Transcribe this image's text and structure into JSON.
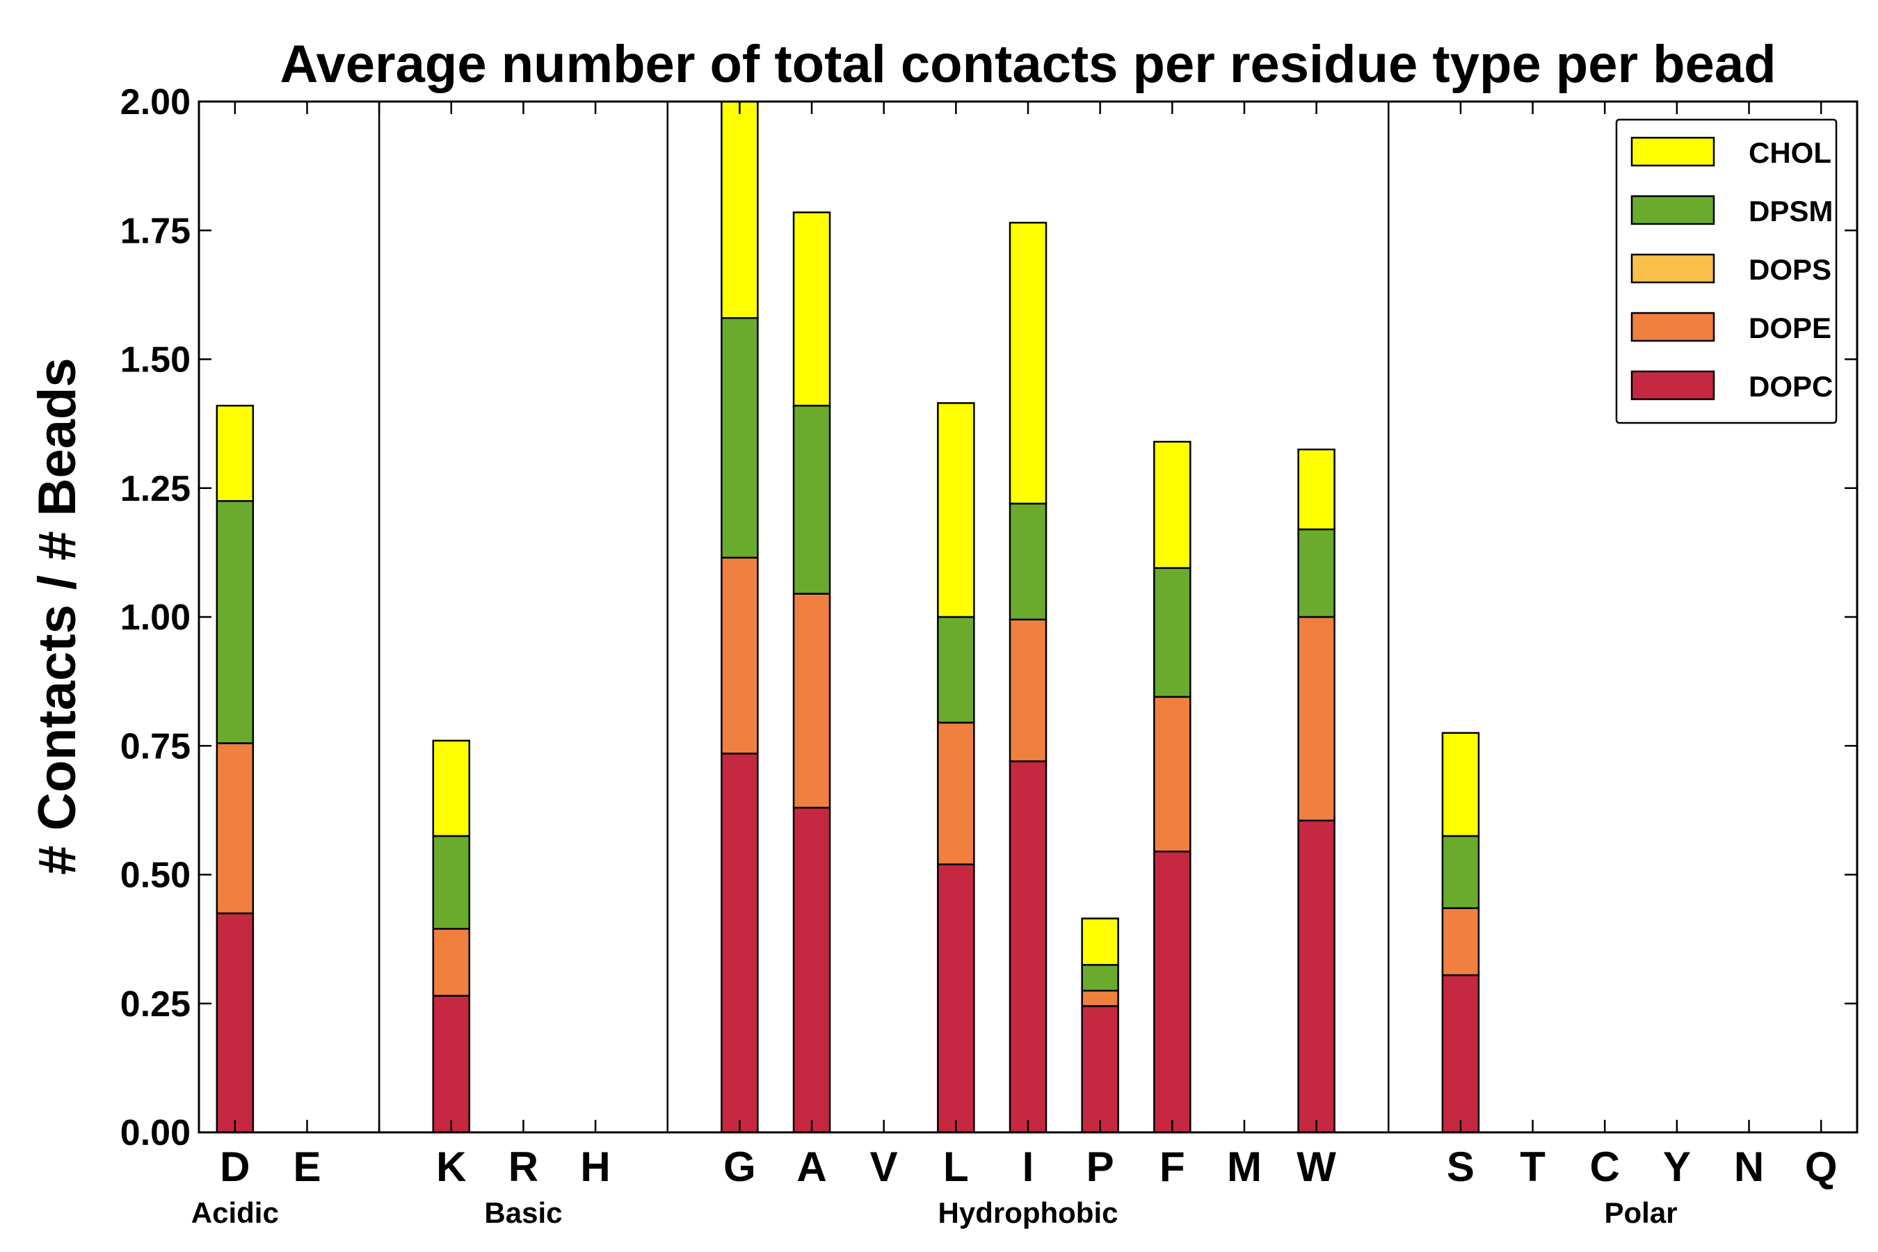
{
  "chart_data": {
    "type": "bar",
    "stacked": true,
    "title": "Average number of total contacts per residue type per bead",
    "ylabel": "# Contacts / # Beads",
    "xlabel": "",
    "ylim": [
      0,
      2.0
    ],
    "yticks": [
      "0.00",
      "0.25",
      "0.50",
      "0.75",
      "1.00",
      "1.25",
      "1.50",
      "1.75",
      "2.00"
    ],
    "categories": [
      "D",
      "E",
      "",
      "K",
      "R",
      "H",
      "",
      "G",
      "A",
      "V",
      "L",
      "I",
      "P",
      "F",
      "M",
      "W",
      "",
      "S",
      "T",
      "C",
      "Y",
      "N",
      "Q"
    ],
    "groups": [
      {
        "label": "Acidic",
        "from": 0,
        "to": 0
      },
      {
        "label": "Basic",
        "from": 3,
        "to": 5
      },
      {
        "label": "Hydrophobic",
        "from": 7,
        "to": 15
      },
      {
        "label": "Polar",
        "from": 17,
        "to": 22
      }
    ],
    "separators_after": [
      2,
      6,
      16
    ],
    "grid": false,
    "legend_position": "top-right",
    "series": [
      {
        "name": "DOPC",
        "color": "#c62841",
        "values": [
          0.425,
          0,
          0,
          0.265,
          0,
          0,
          0,
          0.735,
          0.63,
          0,
          0.52,
          0.72,
          0.245,
          0.545,
          0,
          0.605,
          0,
          0.305,
          0,
          0,
          0,
          0,
          0
        ]
      },
      {
        "name": "DOPE",
        "color": "#f08040",
        "values": [
          0.33,
          0,
          0,
          0.13,
          0,
          0,
          0,
          0.38,
          0.415,
          0,
          0.275,
          0.275,
          0.03,
          0.3,
          0,
          0.395,
          0,
          0.13,
          0,
          0,
          0,
          0,
          0
        ]
      },
      {
        "name": "DOPS",
        "color": "#fbc04a",
        "values": [
          0,
          0,
          0,
          0,
          0,
          0,
          0,
          0,
          0,
          0,
          0,
          0,
          0,
          0,
          0,
          0,
          0,
          0,
          0,
          0,
          0,
          0,
          0
        ]
      },
      {
        "name": "DPSM",
        "color": "#6aab2e",
        "values": [
          0.47,
          0,
          0,
          0.18,
          0,
          0,
          0,
          0.465,
          0.365,
          0,
          0.205,
          0.225,
          0.05,
          0.25,
          0,
          0.17,
          0,
          0.14,
          0,
          0,
          0,
          0,
          0
        ]
      },
      {
        "name": "CHOL",
        "color": "#ffff00",
        "values": [
          0.185,
          0,
          0,
          0.185,
          0,
          0,
          0,
          0.42,
          0.375,
          0,
          0.415,
          0.545,
          0.09,
          0.245,
          0,
          0.155,
          0,
          0.2,
          0,
          0,
          0,
          0,
          0
        ]
      }
    ],
    "legend_order": [
      "CHOL",
      "DPSM",
      "DOPS",
      "DOPE",
      "DOPC"
    ]
  }
}
